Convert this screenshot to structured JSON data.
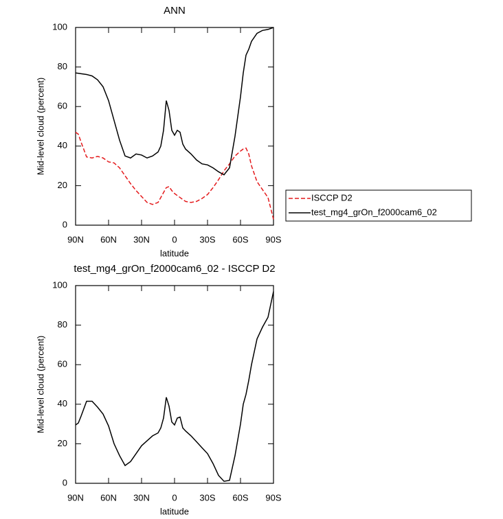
{
  "chart_data": [
    {
      "type": "line",
      "title": "ANN",
      "xlabel": "latitude",
      "ylabel": "Mid-level cloud (percent)",
      "x": [
        90,
        87.5,
        85,
        80,
        75,
        70,
        65,
        60,
        55,
        50,
        45,
        40,
        35,
        30,
        25,
        20,
        15,
        12.5,
        10,
        7.5,
        5,
        2.5,
        0,
        -2.5,
        -5,
        -7.5,
        -10,
        -15,
        -20,
        -25,
        -30,
        -35,
        -40,
        -45,
        -50,
        -55,
        -60,
        -62.5,
        -65,
        -67.5,
        -70,
        -75,
        -80,
        -85,
        -90
      ],
      "series": [
        {
          "name": "ISCCP D2",
          "color": "#e41a1c",
          "linestyle": "dashed",
          "values": [
            47,
            46,
            42,
            34.5,
            34,
            34.8,
            34,
            32,
            31.5,
            29,
            25,
            21,
            17.5,
            14.5,
            11.5,
            10.5,
            11.5,
            14,
            16.5,
            19,
            19.5,
            17.5,
            16,
            15,
            14,
            13,
            12,
            11.5,
            12,
            13.5,
            15.5,
            19,
            23,
            27.5,
            31,
            35,
            37.5,
            38.5,
            39,
            36,
            30,
            22,
            18,
            14,
            3
          ]
        },
        {
          "name": "test_mg4_grOn_f2000cam6_02",
          "color": "#000000",
          "linestyle": "solid",
          "values": [
            77,
            76.8,
            76.6,
            76.2,
            75.5,
            73.5,
            70,
            63,
            53,
            43,
            35,
            34,
            36,
            35.5,
            34,
            35,
            37,
            40,
            48,
            63,
            58,
            48,
            45.5,
            48,
            47,
            41,
            38.5,
            36,
            33,
            31,
            30.5,
            29,
            27,
            25.5,
            29,
            45,
            65,
            77,
            86,
            89,
            93,
            97,
            98.5,
            99,
            100
          ]
        }
      ],
      "xlim": [
        90,
        -90
      ],
      "xticks": [
        {
          "value": 90,
          "label": "90N"
        },
        {
          "value": 60,
          "label": "60N"
        },
        {
          "value": 30,
          "label": "30N"
        },
        0,
        {
          "value": -30,
          "label": "30S"
        },
        {
          "value": -60,
          "label": "60S"
        },
        {
          "value": -90,
          "label": "90S"
        }
      ],
      "ylim": [
        0,
        100
      ],
      "yticks": [
        0,
        20,
        40,
        60,
        80,
        100
      ],
      "legend": "right"
    },
    {
      "type": "line",
      "title": "test_mg4_grOn_f2000cam6_02 - ISCCP D2",
      "xlabel": "latitude",
      "ylabel": "Mid-level cloud (percent)",
      "x": [
        90,
        87.5,
        85,
        80,
        75,
        70,
        65,
        60,
        55,
        50,
        45,
        40,
        35,
        30,
        25,
        20,
        15,
        12.5,
        10,
        7.5,
        5,
        2.5,
        0,
        -2.5,
        -5,
        -7.5,
        -10,
        -15,
        -20,
        -25,
        -30,
        -35,
        -40,
        -45,
        -50,
        -55,
        -60,
        -62.5,
        -65,
        -67.5,
        -70,
        -75,
        -80,
        -85,
        -90
      ],
      "color": "#000000",
      "values": [
        29.5,
        30.5,
        34,
        41.5,
        41.5,
        38.5,
        35,
        29,
        20,
        14,
        9,
        11,
        15,
        19,
        21.5,
        24,
        25.5,
        28,
        33,
        43.5,
        39,
        31,
        29.5,
        33,
        33.5,
        28,
        26.5,
        24,
        21,
        18,
        15,
        10,
        4,
        1,
        1.5,
        14,
        30,
        40,
        45,
        52,
        60,
        73,
        79,
        84,
        97
      ],
      "xlim": [
        90,
        -90
      ],
      "xticks": [
        {
          "value": 90,
          "label": "90N"
        },
        {
          "value": 60,
          "label": "60N"
        },
        {
          "value": 30,
          "label": "30N"
        },
        0,
        {
          "value": -30,
          "label": "30S"
        },
        {
          "value": -60,
          "label": "60S"
        },
        {
          "value": -90,
          "label": "90S"
        }
      ],
      "ylim": [
        0,
        100
      ],
      "yticks": [
        0,
        20,
        40,
        60,
        80,
        100
      ]
    }
  ]
}
